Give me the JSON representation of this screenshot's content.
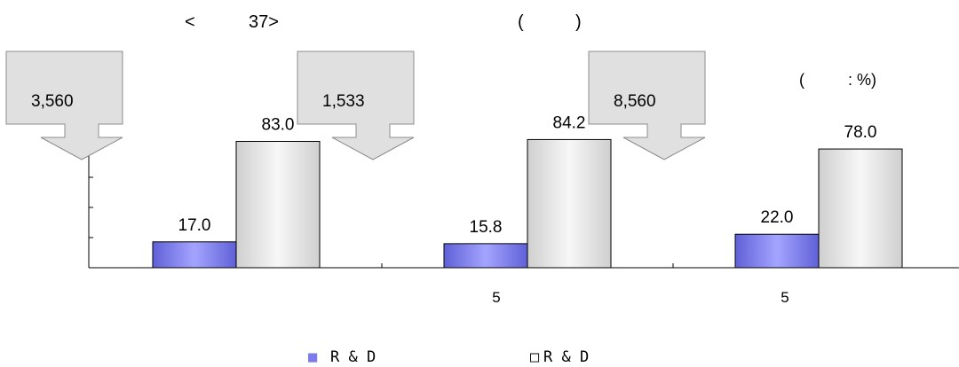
{
  "title": {
    "left": "<",
    "number": "37>",
    "paren_open": "(",
    "paren_close": ")"
  },
  "unit_note": {
    "open": "(",
    "text": ": %)"
  },
  "chart_data": {
    "type": "bar",
    "categories": [
      "",
      "5",
      "5"
    ],
    "callouts": [
      "3,560",
      "1,533",
      "8,560"
    ],
    "series": [
      {
        "name": "R & D",
        "values": [
          17.0,
          15.8,
          22.0
        ]
      },
      {
        "name": "R & D",
        "values": [
          83.0,
          84.2,
          78.0
        ]
      }
    ],
    "data_labels": [
      [
        "17.0",
        "15.8",
        "22.0"
      ],
      [
        "83.0",
        "84.2",
        "78.0"
      ]
    ],
    "ylim": [
      0,
      100
    ],
    "grid": false,
    "legend_placement": "bottom",
    "legend": {
      "marker1": "■",
      "marker2": "□",
      "label1": "R & D",
      "label2": "R & D"
    },
    "colors": {
      "series1": "#7b7bee",
      "series2": "#e6e6e6",
      "callout": "#e0e0e0"
    }
  }
}
